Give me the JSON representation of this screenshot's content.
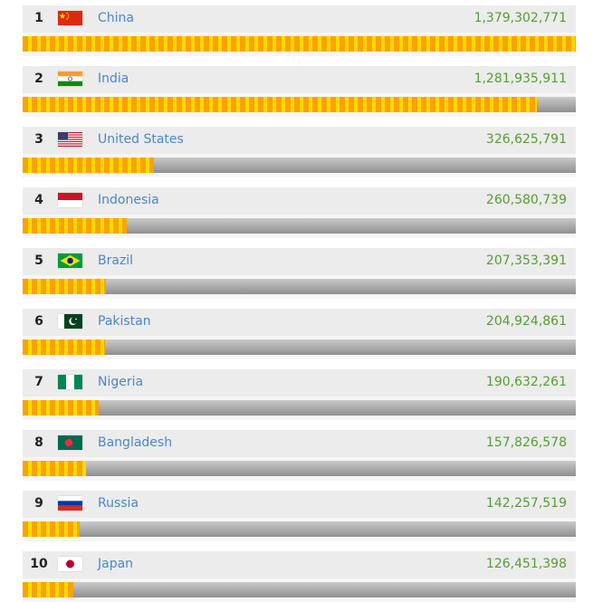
{
  "chart_data": {
    "type": "bar",
    "orientation": "horizontal",
    "title": "",
    "categories": [
      "China",
      "India",
      "United States",
      "Indonesia",
      "Brazil",
      "Pakistan",
      "Nigeria",
      "Bangladesh",
      "Russia",
      "Japan"
    ],
    "ranks": [
      "1",
      "2",
      "3",
      "4",
      "5",
      "6",
      "7",
      "8",
      "9",
      "10"
    ],
    "values": [
      1379302771,
      1281935911,
      326625791,
      260580739,
      207353391,
      204924861,
      190632261,
      157826578,
      142257519,
      126451398
    ],
    "value_labels": [
      "1,379,302,771",
      "1,281,935,911",
      "326,625,791",
      "260,580,739",
      "207,353,391",
      "204,924,861",
      "190,632,261",
      "157,826,578",
      "142,257,519",
      "126,451,398"
    ],
    "flag_icons": [
      "china-flag-icon",
      "india-flag-icon",
      "usa-flag-icon",
      "indonesia-flag-icon",
      "brazil-flag-icon",
      "pakistan-flag-icon",
      "nigeria-flag-icon",
      "bangladesh-flag-icon",
      "russia-flag-icon",
      "japan-flag-icon"
    ],
    "xlim": [
      0,
      1379302771
    ],
    "grid": false,
    "legend": "none",
    "colors": {
      "bar_fill_a": "#f9a300",
      "bar_fill_b": "#ffd900",
      "track": "#a8a8a8",
      "name_text": "#4a87c9",
      "value_text": "#52a030"
    }
  }
}
